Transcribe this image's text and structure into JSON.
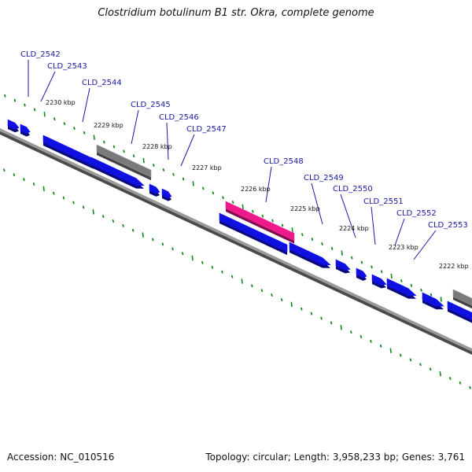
{
  "title": "Clostridium botulinum B1 str. Okra, complete genome",
  "footer": {
    "accession": "Accession: NC_010516",
    "topology": "Topology: circular; Length: 3,958,233 bp; Genes: 3,761"
  },
  "colors": {
    "cds": "#1010e0",
    "gene_gray": "#7a7a7a",
    "rrna_pink": "#ee1a8a",
    "backbone": "#8a8a8a",
    "tick_green": "#11881a",
    "label_blue": "#1a1aa6"
  },
  "kbp_ticks": [
    "2230 kbp",
    "2229 kbp",
    "2228 kbp",
    "2227 kbp",
    "2226 kbp",
    "2225 kbp",
    "2224 kbp",
    "2223 kbp",
    "2222 kbp"
  ],
  "gene_labels": [
    "CLD_2542",
    "CLD_2543",
    "CLD_2544",
    "CLD_2545",
    "CLD_2546",
    "CLD_2547",
    "CLD_2548",
    "CLD_2549",
    "CLD_2550",
    "CLD_2551",
    "CLD_2552",
    "CLD_2553"
  ]
}
